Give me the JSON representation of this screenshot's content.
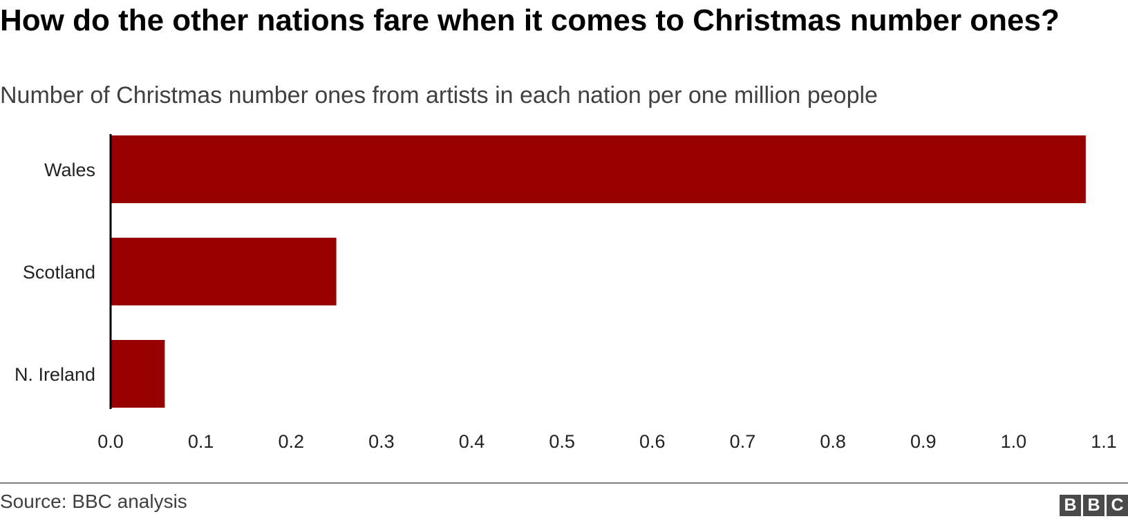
{
  "header": {
    "title": "How do the other nations fare when it comes to Christmas number ones?",
    "subtitle": "Number of Christmas number ones from artists in each nation per one million people"
  },
  "chart_data": {
    "type": "bar",
    "orientation": "horizontal",
    "title": "How do the other nations fare when it comes to Christmas number ones?",
    "subtitle": "Number of Christmas number ones from artists in each nation per one million people",
    "categories": [
      "Wales",
      "Scotland",
      "N. Ireland"
    ],
    "values": [
      1.08,
      0.25,
      0.06
    ],
    "xlim": [
      0,
      1.1
    ],
    "xticks": [
      "0.0",
      "0.1",
      "0.2",
      "0.3",
      "0.4",
      "0.5",
      "0.6",
      "0.7",
      "0.8",
      "0.9",
      "1.0",
      "1.1"
    ],
    "xlabel": "",
    "ylabel": "",
    "grid": false,
    "bar_color": "#990000"
  },
  "footer": {
    "source": "Source: BBC analysis",
    "logo_letters": [
      "B",
      "B",
      "C"
    ]
  }
}
